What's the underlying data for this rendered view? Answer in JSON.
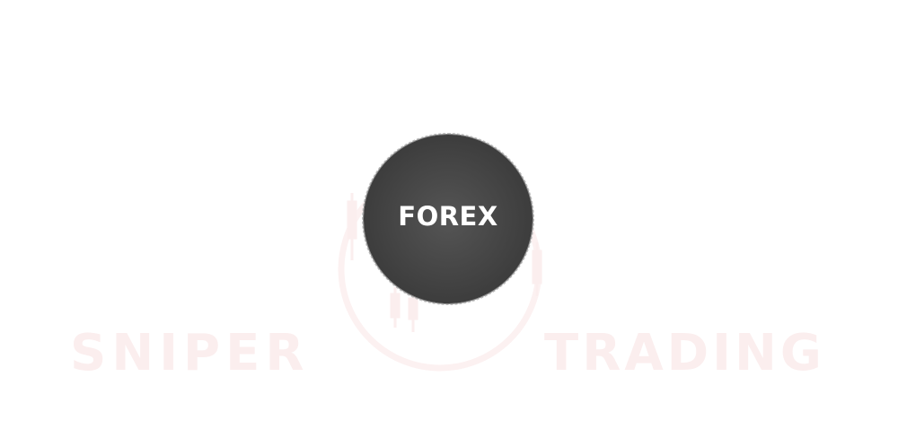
{
  "badge": {
    "label": "FOREX",
    "color": "#3d3d3d",
    "text_color": "#ffffff"
  },
  "watermark": {
    "left_text": "SNIPER",
    "right_text": "TRADING",
    "color": "#fbeeee"
  }
}
